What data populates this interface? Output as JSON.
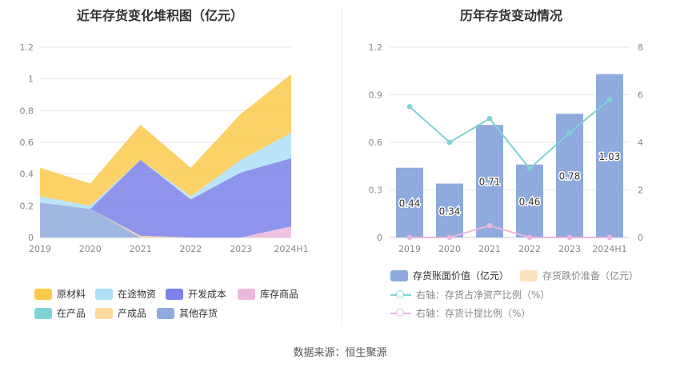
{
  "left_chart_title": "近年存货变化堆积图（亿元）",
  "right_chart_title": "历年存货变动情况",
  "source": "数据来源：恒生聚源",
  "chart_data": [
    {
      "type": "area",
      "stacked": true,
      "title": "近年存货变化堆积图（亿元）",
      "categories": [
        "2019",
        "2020",
        "2021",
        "2022",
        "2023",
        "2024H1"
      ],
      "ylim": [
        0,
        1.2
      ],
      "yticks": [
        "0",
        "0.2",
        "0.4",
        "0.6",
        "0.8",
        "1",
        "1.2"
      ],
      "grid": true,
      "legend_position": "bottom",
      "series": [
        {
          "name": "其他存货",
          "color": "#8faadc",
          "values": [
            0.22,
            0.18,
            0.0,
            0.0,
            0.0,
            0.0
          ]
        },
        {
          "name": "产成品",
          "color": "#fdd9a0",
          "values": [
            0.0,
            0.0,
            0.01,
            0.0,
            0.0,
            0.0
          ]
        },
        {
          "name": "在产品",
          "color": "#7fd3d6",
          "values": [
            0.0,
            0.0,
            0.0,
            0.0,
            0.0,
            0.0
          ]
        },
        {
          "name": "库存商品",
          "color": "#ebb7dd",
          "values": [
            0.0,
            0.0,
            0.0,
            0.0,
            0.0,
            0.07
          ]
        },
        {
          "name": "开发成本",
          "color": "#7b82ea",
          "values": [
            0.0,
            0.0,
            0.48,
            0.24,
            0.41,
            0.43
          ]
        },
        {
          "name": "在途物资",
          "color": "#aee0f8",
          "values": [
            0.04,
            0.02,
            0.0,
            0.02,
            0.08,
            0.16
          ]
        },
        {
          "name": "原材料",
          "color": "#fcc94c",
          "values": [
            0.18,
            0.14,
            0.22,
            0.18,
            0.29,
            0.37
          ]
        }
      ],
      "legend_order": [
        "原材料",
        "在途物资",
        "开发成本",
        "库存商品",
        "在产品",
        "产成品",
        "其他存货"
      ]
    },
    {
      "type": "bar",
      "title": "历年存货变动情况",
      "categories": [
        "2019",
        "2020",
        "2021",
        "2022",
        "2023",
        "2024H1"
      ],
      "ylim": [
        0,
        1.2
      ],
      "yticks": [
        "0",
        "0.3",
        "0.6",
        "0.9",
        "1.2"
      ],
      "y2lim": [
        0,
        8
      ],
      "y2ticks": [
        "0",
        "2",
        "4",
        "6",
        "8"
      ],
      "grid": true,
      "legend_position": "bottom",
      "bar_series": {
        "name": "存货账面价值（亿元）",
        "color": "#8faadc",
        "values": [
          0.44,
          0.34,
          0.71,
          0.46,
          0.78,
          1.03
        ]
      },
      "bar_series_2": {
        "name": "存货跌价准备（亿元）",
        "color": "#fde3c0",
        "values": [
          0,
          0,
          0,
          0,
          0,
          0
        ]
      },
      "line_series": [
        {
          "name": "右轴：存货占净资产比例（%）",
          "color": "#7fd3d6",
          "axis": "right",
          "values": [
            5.5,
            4.0,
            5.0,
            2.9,
            4.4,
            5.8
          ]
        },
        {
          "name": "右轴：存货计提比例（%）",
          "color": "#ebb7dd",
          "axis": "right",
          "values": [
            0.0,
            0.0,
            0.5,
            0.0,
            0.0,
            0.0
          ]
        }
      ]
    }
  ]
}
